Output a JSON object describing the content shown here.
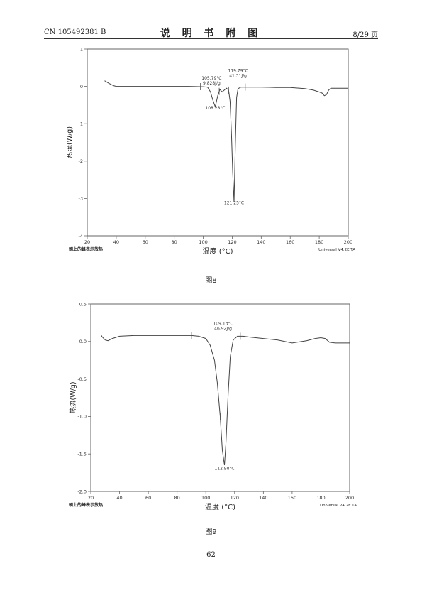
{
  "header": {
    "doc_id": "CN 105492381 B",
    "section_title": "说 明 书 附 图",
    "page_of": "8/29 页"
  },
  "figures": [
    {
      "caption": "图8"
    },
    {
      "caption": "图9"
    }
  ],
  "page_number": "62",
  "chart_data": [
    {
      "type": "line",
      "xlabel": "温度 (°C)",
      "ylabel": "热流(W/g)",
      "xlim": [
        20,
        200
      ],
      "ylim": [
        -4,
        1
      ],
      "xticks": [
        "20",
        "40",
        "60",
        "80",
        "100",
        "120",
        "140",
        "160",
        "180",
        "200"
      ],
      "yticks": [
        "1",
        "0",
        "-1",
        "-2",
        "-3",
        "-4"
      ],
      "footer_left": "朝上的峰表示放热",
      "footer_right": "Universal V4.2E TA",
      "series": [
        {
          "x": [
            32,
            35,
            38,
            40,
            50,
            60,
            70,
            80,
            90,
            100,
            103,
            105,
            106.5,
            108.28,
            110,
            111.5,
            113,
            114.5,
            116,
            117.5,
            118.5,
            119.5,
            120.3,
            121.25,
            122.2,
            123,
            124,
            126,
            130,
            140,
            150,
            160,
            170,
            176,
            180,
            182,
            183.5,
            185,
            186.5,
            188,
            192,
            196,
            200
          ],
          "y": [
            0.15,
            0.08,
            0.02,
            0.0,
            0.0,
            0.0,
            0.0,
            0.0,
            0.0,
            -0.01,
            -0.02,
            -0.15,
            -0.35,
            -0.55,
            -0.25,
            -0.08,
            -0.15,
            -0.1,
            -0.05,
            -0.1,
            -0.4,
            -1.3,
            -2.3,
            -3.1,
            -1.5,
            -0.3,
            -0.06,
            -0.02,
            -0.02,
            -0.02,
            -0.03,
            -0.03,
            -0.06,
            -0.1,
            -0.15,
            -0.18,
            -0.25,
            -0.22,
            -0.1,
            -0.05,
            -0.05,
            -0.05,
            -0.05
          ]
        }
      ],
      "annotations": [
        {
          "lines": [
            "105.79°C",
            "9.828J/g"
          ],
          "x": 105.79,
          "y": 0.18
        },
        {
          "lines": [
            "119.79°C",
            "41.31J/g"
          ],
          "x": 124,
          "y": 0.38
        },
        {
          "lines": [
            "108.28°C"
          ],
          "x": 108.28,
          "y": -0.62
        },
        {
          "lines": [
            "121.25°C"
          ],
          "x": 121.25,
          "y": -3.15
        }
      ],
      "integration_marks_x": [
        98,
        111,
        117.5,
        129
      ]
    },
    {
      "type": "line",
      "xlabel": "温度 (°C)",
      "ylabel": "热流(W/g)",
      "xlim": [
        20,
        200
      ],
      "ylim": [
        -2.0,
        0.5
      ],
      "xticks": [
        "20",
        "40",
        "60",
        "80",
        "100",
        "120",
        "140",
        "160",
        "180",
        "200"
      ],
      "yticks": [
        "0.5",
        "0.0",
        "-0.5",
        "-1.0",
        "-1.5",
        "-2.0"
      ],
      "footer_left": "朝上的峰表示放热",
      "footer_right": "Universal V4.2E TA",
      "series": [
        {
          "x": [
            27,
            28,
            30,
            32,
            35,
            40,
            50,
            60,
            70,
            80,
            90,
            95,
            100,
            103,
            106,
            108,
            110,
            111.5,
            112.98,
            114,
            115.5,
            117,
            119,
            122,
            126,
            130,
            140,
            150,
            160,
            170,
            176,
            180,
            183,
            186,
            190,
            195,
            200
          ],
          "y": [
            0.09,
            0.06,
            0.02,
            0.01,
            0.04,
            0.07,
            0.08,
            0.08,
            0.08,
            0.08,
            0.08,
            0.07,
            0.04,
            -0.05,
            -0.25,
            -0.55,
            -1.0,
            -1.45,
            -1.65,
            -1.35,
            -0.7,
            -0.2,
            0.02,
            0.07,
            0.07,
            0.06,
            0.04,
            0.02,
            -0.02,
            0.01,
            0.04,
            0.05,
            0.04,
            -0.01,
            -0.02,
            -0.02,
            -0.02
          ]
        }
      ],
      "annotations": [
        {
          "lines": [
            "109.13°C",
            "46.92J/g"
          ],
          "x": 112,
          "y": 0.22
        },
        {
          "lines": [
            "112.98°C"
          ],
          "x": 112.98,
          "y": -1.71
        }
      ],
      "integration_marks_x": [
        90,
        110,
        124
      ]
    }
  ]
}
